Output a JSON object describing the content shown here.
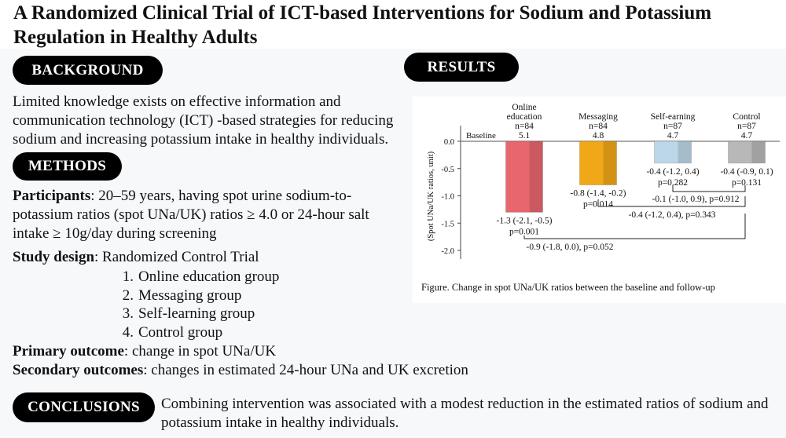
{
  "title": "A Randomized Clinical Trial of ICT-based Interventions for Sodium and Potassium Regulation in Healthy Adults",
  "sections": {
    "background": {
      "label": "BACKGROUND",
      "text": "Limited knowledge exists on effective information and communication technology (ICT) -based strategies for reducing sodium and increasing potassium intake in healthy individuals."
    },
    "methods": {
      "label": "METHODS",
      "participants_label": "Participants",
      "participants_text": ": 20–59 years, having spot urine sodium-to-potassium ratios (spot UNa/UK) ratios ≥ 4.0 or  24-hour salt intake ≥ 10g/day during screening",
      "design_label": "Study design",
      "design_text": ": Randomized Control Trial",
      "groups": [
        {
          "num": "1.",
          "label": "Online education group"
        },
        {
          "num": "2.",
          "label": "Messaging group"
        },
        {
          "num": "3.",
          "label": "Self-learning group"
        },
        {
          "num": "4.",
          "label": "Control group"
        }
      ],
      "primary_label": "Primary outcome",
      "primary_text": ": change in spot UNa/UK",
      "secondary_label": "Secondary outcomes",
      "secondary_text": ": changes in estimated 24-hour UNa and UK excretion"
    },
    "results": {
      "label": "RESULTS"
    },
    "conclusions": {
      "label": "CONCLUSIONS",
      "text": "Combining intervention was associated with a modest reduction in the estimated ratios of sodium and potassium intake in healthy individuals."
    }
  },
  "chart_data": {
    "type": "bar",
    "ylabel": "(Spot UNa/UK ratios, unit)",
    "ylim": [
      -2.0,
      0.0
    ],
    "yticks": [
      "0.0",
      "-0.5",
      "-1.0",
      "-1.5",
      "-2.0"
    ],
    "ytick_values": [
      0.0,
      -0.5,
      -1.0,
      -1.5,
      -2.0
    ],
    "baseline_label": "Baseline",
    "categories": [
      {
        "name_lines": [
          "Online",
          "education"
        ],
        "n": "n=84",
        "baseline": "5.1",
        "value": -1.3,
        "ci": "-1.3 (-2.1, -0.5)",
        "p": "p=0.001",
        "color": "#e8666e"
      },
      {
        "name_lines": [
          "Messaging"
        ],
        "n": "n=84",
        "baseline": "4.8",
        "value": -0.8,
        "ci": "-0.8 (-1.4, -0.2)",
        "p": "p=0.014",
        "color": "#f0a818"
      },
      {
        "name_lines": [
          "Self-earning"
        ],
        "n": "n=87",
        "baseline": "4.7",
        "value": -0.4,
        "ci": "-0.4 (-1.2, 0.4)",
        "p": "p=0.282",
        "color": "#bcd8e8"
      },
      {
        "name_lines": [
          "Control"
        ],
        "n": "n=87",
        "baseline": "4.7",
        "value": -0.4,
        "ci": "-0.4 (-0.9, 0.1)",
        "p": "p=0.131",
        "color": "#b8b8b8"
      }
    ],
    "comparisons": [
      {
        "from": "Self-earning",
        "to": "Control",
        "text": "-0.1 (-1.0, 0.9), p=0.912"
      },
      {
        "from": "Messaging",
        "to": "Control",
        "text": "-0.4 (-1.2, 0.4), p=0.343"
      },
      {
        "from": "Online education",
        "to": "Control",
        "text": "-0.9 (-1.8, 0.0), p=0.052"
      }
    ],
    "caption": "Figure. Change in spot UNa/UK ratios between the baseline and follow-up"
  }
}
